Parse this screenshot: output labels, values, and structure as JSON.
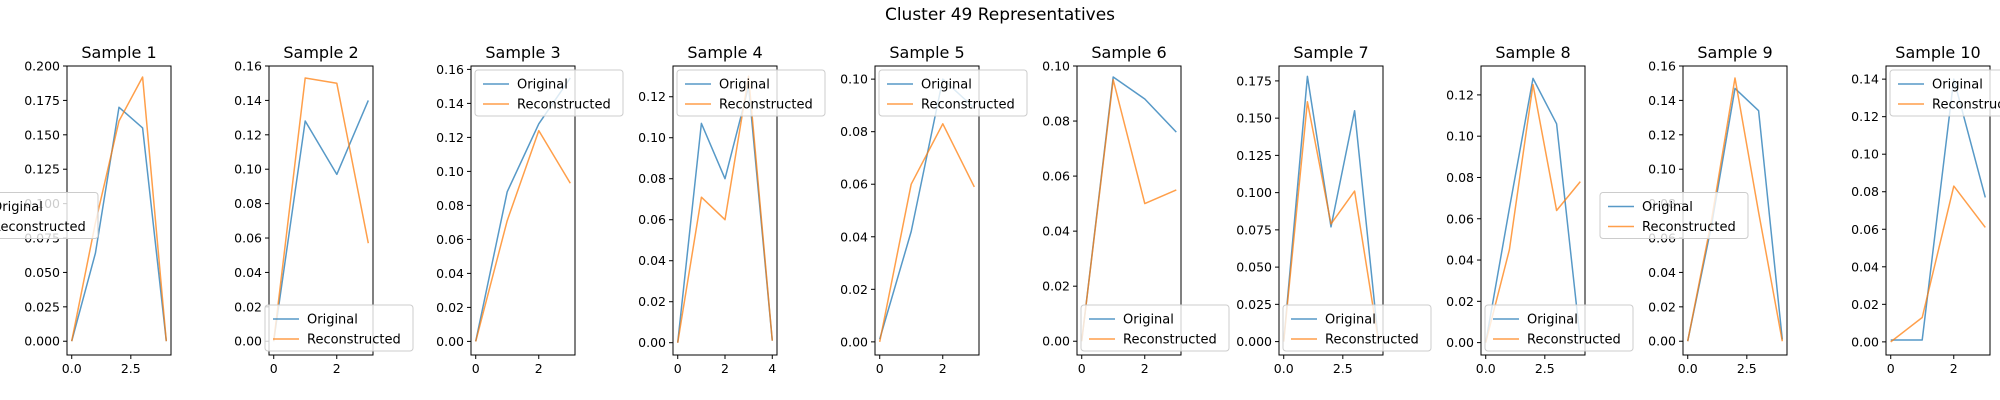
{
  "figure": {
    "title": "Cluster 49 Representatives"
  },
  "colors": {
    "original": "#1f77b4",
    "reconstructed": "#ff7f0e"
  },
  "chart_data": [
    {
      "type": "line",
      "title": "Sample 1",
      "x": [
        0,
        1,
        2,
        3,
        4
      ],
      "xlim": [
        -0.2,
        4.2
      ],
      "xticks": [
        "0.0",
        "2.5"
      ],
      "ylim": [
        -0.01,
        0.2
      ],
      "yticks": [
        "0.000",
        "0.025",
        "0.050",
        "0.075",
        "0.100",
        "0.125",
        "0.150",
        "0.175",
        "0.200"
      ],
      "legend_loc": "center left",
      "series": [
        {
          "name": "Original",
          "values": [
            0.0,
            0.064,
            0.17,
            0.155,
            0.0
          ]
        },
        {
          "name": "Reconstructed",
          "values": [
            0.0,
            0.086,
            0.16,
            0.192,
            0.0
          ]
        }
      ]
    },
    {
      "type": "line",
      "title": "Sample 2",
      "x": [
        0,
        1,
        2,
        3
      ],
      "xlim": [
        -0.15,
        3.15
      ],
      "xticks": [
        "0",
        "2"
      ],
      "ylim": [
        -0.008,
        0.16
      ],
      "yticks": [
        "0.00",
        "0.02",
        "0.04",
        "0.06",
        "0.08",
        "0.10",
        "0.12",
        "0.14",
        "0.16"
      ],
      "legend_loc": "lower right",
      "series": [
        {
          "name": "Original",
          "values": [
            0.0,
            0.128,
            0.097,
            0.14
          ]
        },
        {
          "name": "Reconstructed",
          "values": [
            0.0,
            0.153,
            0.15,
            0.057
          ]
        }
      ]
    },
    {
      "type": "line",
      "title": "Sample 3",
      "x": [
        0,
        1,
        2,
        3
      ],
      "xlim": [
        -0.15,
        3.15
      ],
      "xticks": [
        "0",
        "2"
      ],
      "ylim": [
        -0.008,
        0.162
      ],
      "yticks": [
        "0.00",
        "0.02",
        "0.04",
        "0.06",
        "0.08",
        "0.10",
        "0.12",
        "0.14",
        "0.16"
      ],
      "legend_loc": "upper left",
      "series": [
        {
          "name": "Original",
          "values": [
            0.0,
            0.088,
            0.128,
            0.155
          ]
        },
        {
          "name": "Reconstructed",
          "values": [
            0.0,
            0.071,
            0.124,
            0.093
          ]
        }
      ]
    },
    {
      "type": "line",
      "title": "Sample 4",
      "x": [
        0,
        1,
        2,
        3,
        4
      ],
      "xlim": [
        -0.2,
        4.2
      ],
      "xticks": [
        "0",
        "2",
        "4"
      ],
      "ylim": [
        -0.006,
        0.135
      ],
      "yticks": [
        "0.00",
        "0.02",
        "0.04",
        "0.06",
        "0.08",
        "0.10",
        "0.12"
      ],
      "legend_loc": "upper left",
      "series": [
        {
          "name": "Original",
          "values": [
            0.0,
            0.107,
            0.08,
            0.125,
            0.001
          ]
        },
        {
          "name": "Reconstructed",
          "values": [
            0.0,
            0.071,
            0.06,
            0.13,
            0.001
          ]
        }
      ]
    },
    {
      "type": "line",
      "title": "Sample 5",
      "x": [
        0,
        1,
        2,
        3
      ],
      "xlim": [
        -0.15,
        3.15
      ],
      "xticks": [
        "0",
        "2"
      ],
      "ylim": [
        -0.005,
        0.105
      ],
      "yticks": [
        "0.00",
        "0.02",
        "0.04",
        "0.06",
        "0.08",
        "0.10"
      ],
      "legend_loc": "upper left",
      "series": [
        {
          "name": "Original",
          "values": [
            0.001,
            0.042,
            0.1,
            0.089
          ]
        },
        {
          "name": "Reconstructed",
          "values": [
            0.0,
            0.06,
            0.083,
            0.059
          ]
        }
      ]
    },
    {
      "type": "line",
      "title": "Sample 6",
      "x": [
        0,
        1,
        2,
        3
      ],
      "xlim": [
        -0.15,
        3.15
      ],
      "xticks": [
        "0",
        "2"
      ],
      "ylim": [
        -0.005,
        0.1
      ],
      "yticks": [
        "0.00",
        "0.02",
        "0.04",
        "0.06",
        "0.08",
        "0.10"
      ],
      "legend_loc": "lower left",
      "series": [
        {
          "name": "Original",
          "values": [
            0.0,
            0.096,
            0.088,
            0.076
          ]
        },
        {
          "name": "Reconstructed",
          "values": [
            0.0,
            0.095,
            0.05,
            0.055
          ]
        }
      ]
    },
    {
      "type": "line",
      "title": "Sample 7",
      "x": [
        0,
        1,
        2,
        3,
        4
      ],
      "xlim": [
        -0.2,
        4.2
      ],
      "xticks": [
        "0.0",
        "2.5"
      ],
      "ylim": [
        -0.009,
        0.185
      ],
      "yticks": [
        "0.000",
        "0.025",
        "0.050",
        "0.075",
        "0.100",
        "0.125",
        "0.150",
        "0.175"
      ],
      "legend_loc": "lower left",
      "series": [
        {
          "name": "Original",
          "values": [
            0.0,
            0.178,
            0.077,
            0.155,
            0.001
          ]
        },
        {
          "name": "Reconstructed",
          "values": [
            0.0,
            0.161,
            0.079,
            0.101,
            0.001
          ]
        }
      ]
    },
    {
      "type": "line",
      "title": "Sample 8",
      "x": [
        0,
        1,
        2,
        3,
        4
      ],
      "xlim": [
        -0.2,
        4.2
      ],
      "xticks": [
        "0.0",
        "2.5"
      ],
      "ylim": [
        -0.006,
        0.134
      ],
      "yticks": [
        "0.00",
        "0.02",
        "0.04",
        "0.06",
        "0.08",
        "0.10",
        "0.12"
      ],
      "legend_loc": "lower left",
      "series": [
        {
          "name": "Original",
          "values": [
            0.0,
            0.065,
            0.128,
            0.106,
            0.001
          ]
        },
        {
          "name": "Reconstructed",
          "values": [
            0.0,
            0.045,
            0.125,
            0.064,
            0.078
          ]
        }
      ]
    },
    {
      "type": "line",
      "title": "Sample 9",
      "x": [
        0,
        1,
        2,
        3,
        4
      ],
      "xlim": [
        -0.2,
        4.2
      ],
      "xticks": [
        "0.0",
        "2.5"
      ],
      "ylim": [
        -0.008,
        0.16
      ],
      "yticks": [
        "0.00",
        "0.02",
        "0.04",
        "0.06",
        "0.08",
        "0.10",
        "0.12",
        "0.14",
        "0.16"
      ],
      "legend_loc": "center left",
      "series": [
        {
          "name": "Original",
          "values": [
            0.0,
            0.067,
            0.147,
            0.134,
            0.001
          ]
        },
        {
          "name": "Reconstructed",
          "values": [
            0.0,
            0.07,
            0.153,
            0.075,
            0.0
          ]
        }
      ]
    },
    {
      "type": "line",
      "title": "Sample 10",
      "x": [
        0,
        1,
        2,
        3
      ],
      "xlim": [
        -0.15,
        3.15
      ],
      "xticks": [
        "0",
        "2"
      ],
      "ylim": [
        -0.007,
        0.147
      ],
      "yticks": [
        "0.00",
        "0.02",
        "0.04",
        "0.06",
        "0.08",
        "0.10",
        "0.12",
        "0.14"
      ],
      "legend_loc": "upper left",
      "series": [
        {
          "name": "Original",
          "values": [
            0.001,
            0.001,
            0.14,
            0.077
          ]
        },
        {
          "name": "Reconstructed",
          "values": [
            0.0,
            0.013,
            0.083,
            0.061
          ]
        }
      ]
    }
  ]
}
